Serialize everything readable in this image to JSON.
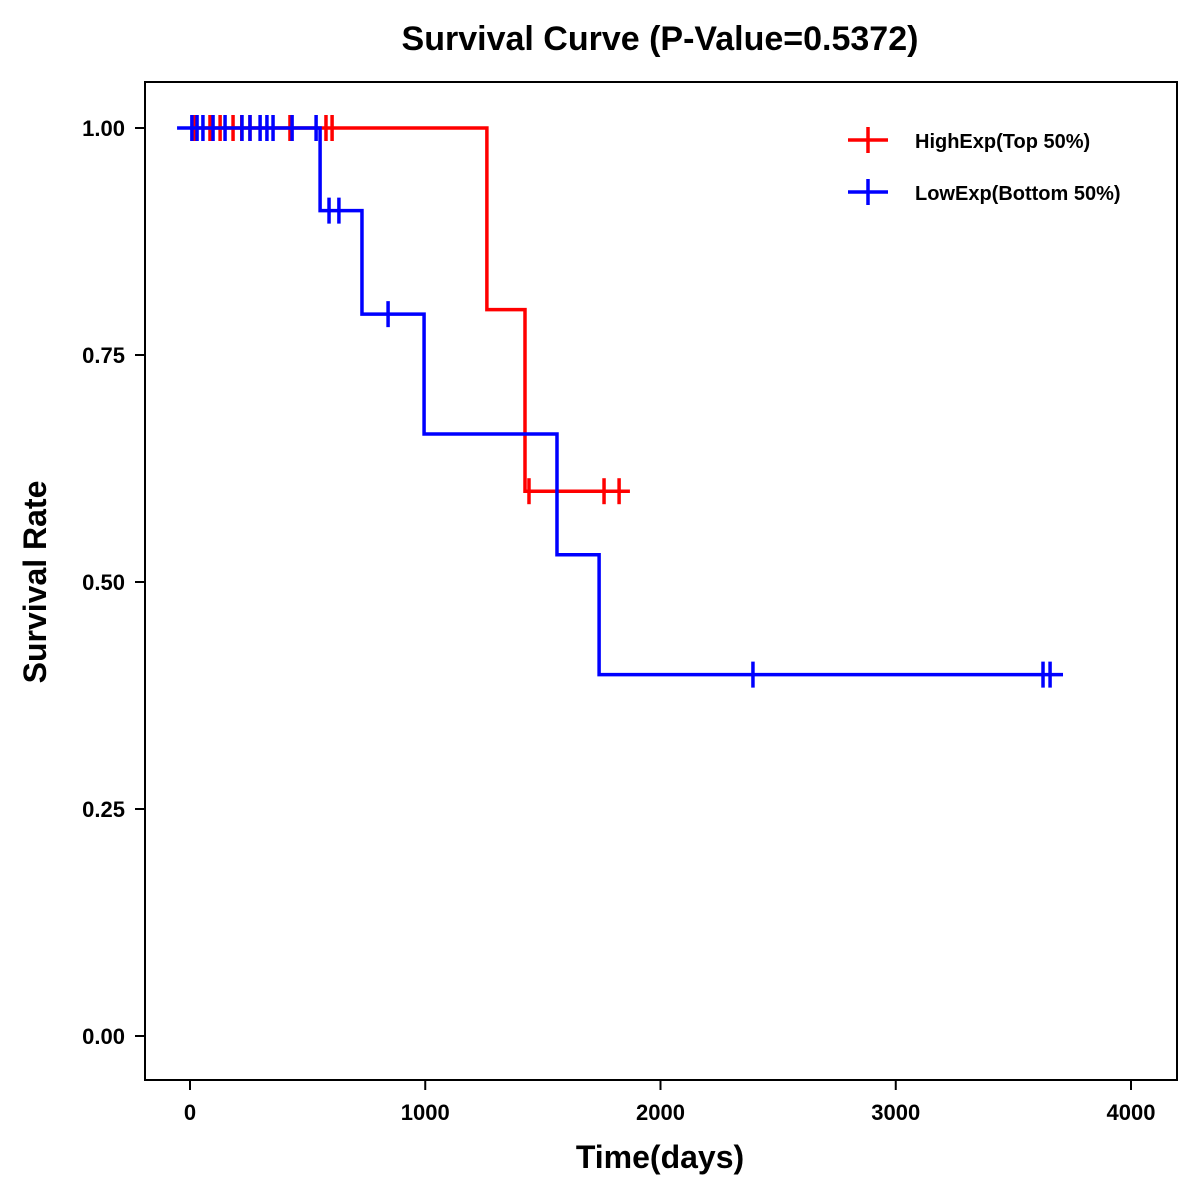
{
  "chart_data": {
    "type": "line",
    "title": "Survival Curve (P-Value=0.5372)",
    "xlabel": "Time(days)",
    "ylabel": "Survival Rate",
    "xlim": [
      -190,
      4190
    ],
    "ylim": [
      -0.05,
      1.05
    ],
    "xticks": [
      0,
      1000,
      2000,
      3000,
      4000
    ],
    "xtick_labels": [
      "0",
      "1000",
      "2000",
      "3000",
      "4000"
    ],
    "yticks": [
      0,
      0.25,
      0.5,
      0.75,
      1.0
    ],
    "ytick_labels": [
      "0.00",
      "0.25",
      "0.50",
      "0.75",
      "1.00"
    ],
    "grid": false,
    "legend_position": "top-right",
    "series": [
      {
        "name": "HighExp(Top 50%)",
        "color": "#ff0000",
        "steps": [
          [
            0,
            1.0
          ],
          [
            1262,
            0.8
          ],
          [
            1424,
            0.6
          ]
        ],
        "end": 1870,
        "censor": [
          [
            20,
            1.0
          ],
          [
            85,
            1.0
          ],
          [
            128,
            1.0
          ],
          [
            183,
            1.0
          ],
          [
            220,
            1.0
          ],
          [
            255,
            1.0
          ],
          [
            425,
            1.0
          ],
          [
            578,
            1.0
          ],
          [
            604,
            1.0
          ],
          [
            1441,
            0.6
          ],
          [
            1760,
            0.6
          ],
          [
            1824,
            0.6
          ]
        ]
      },
      {
        "name": "LowExp(Bottom 50%)",
        "color": "#0000ff",
        "steps": [
          [
            -55,
            1.0
          ],
          [
            553,
            0.909
          ],
          [
            731,
            0.795
          ],
          [
            995,
            0.663
          ],
          [
            1560,
            0.53
          ],
          [
            1739,
            0.398
          ]
        ],
        "end": 3711,
        "censor": [
          [
            8,
            1.0
          ],
          [
            30,
            1.0
          ],
          [
            55,
            1.0
          ],
          [
            98,
            1.0
          ],
          [
            149,
            1.0
          ],
          [
            221,
            1.0
          ],
          [
            255,
            1.0
          ],
          [
            298,
            1.0
          ],
          [
            327,
            1.0
          ],
          [
            353,
            1.0
          ],
          [
            434,
            1.0
          ],
          [
            536,
            1.0
          ],
          [
            591,
            0.909
          ],
          [
            633,
            0.909
          ],
          [
            842,
            0.795
          ],
          [
            2393,
            0.398
          ],
          [
            3626,
            0.398
          ],
          [
            3656,
            0.398
          ]
        ]
      }
    ]
  }
}
